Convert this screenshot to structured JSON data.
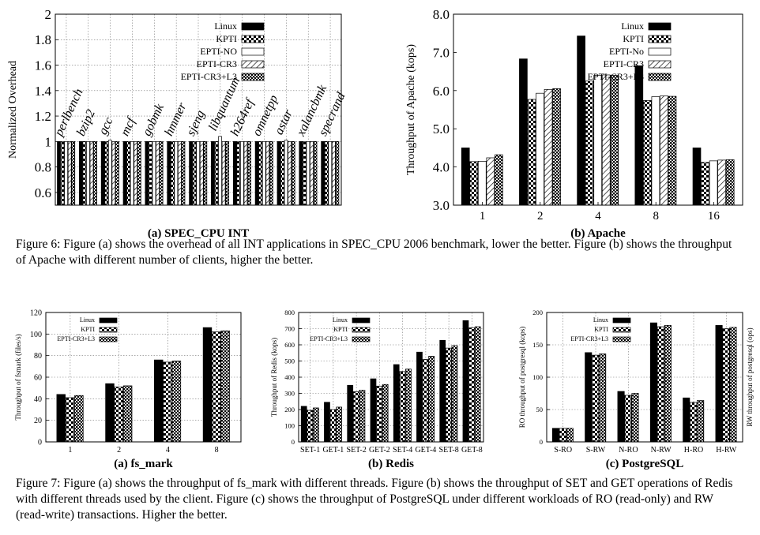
{
  "figure6": {
    "caption": "Figure 6: Figure (a) shows the overhead of all INT applications in SPEC_CPU 2006 benchmark, lower the better. Figure (b) shows the throughput of Apache with different number of clients, higher the better."
  },
  "figure7": {
    "caption": "Figure 7: Figure (a) shows the throughput of fs_mark with different threads. Figure (b) shows the throughput of SET and GET operations of Redis with different threads used by the client. Figure (c) shows the throughput of PostgreSQL under different workloads of RO (read-only) and RW (read-write) transactions. Higher the better."
  },
  "colors": {
    "linux": "#000000",
    "kpti": "checker",
    "epti_no": "#ffffff",
    "epti_cr3": "hatch",
    "epti_cr3_l3": "dots"
  },
  "chart_data": [
    {
      "id": "spec",
      "type": "bar",
      "title": "(a) SPEC_CPU INT",
      "xlabel": "",
      "ylabel": "Normalized Overhead",
      "ylim": [
        0.5,
        2
      ],
      "yticks": [
        "0.6",
        "0.8",
        "1",
        "1.2",
        "1.4",
        "1.6",
        "1.8",
        "2"
      ],
      "grid": true,
      "legend": "top-right",
      "categories": [
        "perlbench",
        "bzip2",
        "gcc",
        "mcf",
        "gobmk",
        "hmmer",
        "sjeng",
        "libquantum",
        "h264ref",
        "omnetpp",
        "astar",
        "xalancbmk",
        "specrand"
      ],
      "category_labels_rotated": true,
      "series": [
        {
          "name": "Linux",
          "values": [
            1,
            1,
            1,
            1,
            1,
            1,
            1,
            1,
            1,
            1,
            1,
            1,
            1
          ]
        },
        {
          "name": "KPTI",
          "values": [
            1,
            1,
            1,
            1,
            1,
            1,
            1,
            1,
            1,
            1,
            1,
            1,
            1
          ]
        },
        {
          "name": "EPTI-NO",
          "values": [
            1,
            1,
            1.01,
            1,
            1,
            1,
            1,
            1.04,
            1,
            1,
            1.01,
            1,
            1
          ]
        },
        {
          "name": "EPTI-CR3",
          "values": [
            1,
            1,
            1,
            1,
            1,
            1,
            1,
            1,
            1,
            1,
            1,
            1,
            1
          ]
        },
        {
          "name": "EPTI-CR3+L3",
          "values": [
            1,
            1,
            1,
            1,
            1,
            1,
            1,
            1,
            1,
            1,
            1,
            1,
            1
          ]
        }
      ]
    },
    {
      "id": "apache",
      "type": "bar",
      "title": "(b) Apache",
      "xlabel": "",
      "ylabel": "Throughput of Apache (kops)",
      "ylim": [
        3.0,
        8.0
      ],
      "yticks": [
        "3.0",
        "4.0",
        "5.0",
        "6.0",
        "7.0",
        "8.0"
      ],
      "grid": false,
      "legend": "top-right",
      "categories": [
        "1",
        "2",
        "4",
        "8",
        "16"
      ],
      "series": [
        {
          "name": "Linux",
          "values": [
            4.5,
            6.83,
            7.43,
            6.65,
            4.5
          ]
        },
        {
          "name": "KPTI",
          "values": [
            4.14,
            5.77,
            6.25,
            5.74,
            4.12
          ]
        },
        {
          "name": "EPTI-No",
          "values": [
            4.15,
            5.93,
            6.4,
            5.84,
            4.16
          ]
        },
        {
          "name": "EPTI-CR3",
          "values": [
            4.24,
            6.03,
            6.41,
            5.86,
            4.18
          ]
        },
        {
          "name": "EPTI-CR3+L3",
          "values": [
            4.32,
            6.05,
            6.4,
            5.85,
            4.19
          ]
        }
      ]
    },
    {
      "id": "fsmark",
      "type": "bar",
      "title": "(a) fs_mark",
      "xlabel": "",
      "ylabel": "Throughput of fsmark (files/s)",
      "ylim": [
        0,
        120
      ],
      "yticks": [
        "0",
        "20",
        "40",
        "60",
        "80",
        "100",
        "120"
      ],
      "grid": true,
      "legend": "top-left",
      "categories": [
        "1",
        "2",
        "4",
        "8"
      ],
      "series": [
        {
          "name": "Linux",
          "values": [
            44,
            54,
            76,
            106
          ]
        },
        {
          "name": "KPTI",
          "values": [
            41,
            51,
            74,
            102
          ]
        },
        {
          "name": "EPTI-CR3+L3",
          "values": [
            43,
            52,
            75,
            103
          ]
        }
      ]
    },
    {
      "id": "redis",
      "type": "bar",
      "title": "(b) Redis",
      "xlabel": "",
      "ylabel": "Throughput of Redis (kops)",
      "ylim": [
        0,
        800
      ],
      "yticks": [
        "0",
        "100",
        "200",
        "300",
        "400",
        "500",
        "600",
        "700",
        "800"
      ],
      "grid": true,
      "legend": "top-left",
      "categories": [
        "SET-1",
        "GET-1",
        "SET-2",
        "GET-2",
        "SET-4",
        "GET-4",
        "SET-8",
        "GET-8"
      ],
      "series": [
        {
          "name": "Linux",
          "values": [
            220,
            245,
            350,
            390,
            478,
            555,
            628,
            750
          ]
        },
        {
          "name": "KPTI",
          "values": [
            195,
            200,
            310,
            345,
            435,
            510,
            580,
            705
          ]
        },
        {
          "name": "EPTI-CR3+L3",
          "values": [
            210,
            215,
            320,
            355,
            450,
            530,
            595,
            712
          ]
        }
      ]
    },
    {
      "id": "postgres",
      "type": "bar",
      "title": "(c) PostgreSQL",
      "xlabel": "",
      "ylabel": "RO throughput of postgresql (kops)",
      "y2label": "RW throughput of postgresql (ops)",
      "ylim": [
        0,
        200
      ],
      "yticks": [
        "0",
        "50",
        "100",
        "150",
        "200"
      ],
      "grid": true,
      "legend": "top-left",
      "categories": [
        "S-RO",
        "S-RW",
        "N-RO",
        "N-RW",
        "H-RO",
        "H-RW"
      ],
      "series": [
        {
          "name": "Linux",
          "values": [
            21,
            138,
            78,
            184,
            68,
            180
          ]
        },
        {
          "name": "KPTI",
          "values": [
            21,
            134,
            72,
            178,
            61,
            175
          ]
        },
        {
          "name": "EPTI-CR3+L3",
          "values": [
            21,
            136,
            75,
            180,
            64,
            177
          ]
        }
      ]
    }
  ]
}
